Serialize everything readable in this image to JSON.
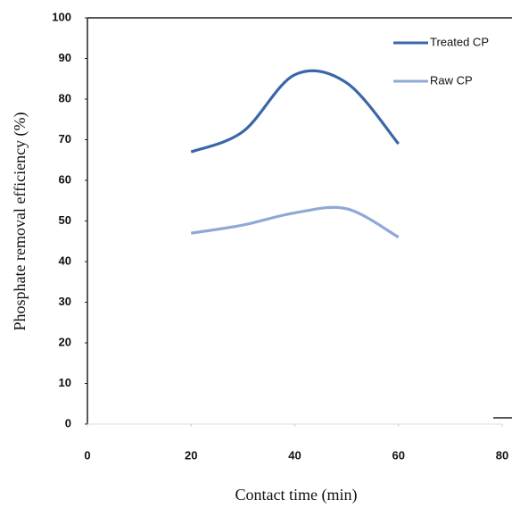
{
  "chart_data": {
    "type": "line",
    "x_label": "Contact time (min)",
    "y_label": "Phosphate removal  efficiency  (%)",
    "x": [
      20,
      30,
      40,
      50,
      60
    ],
    "series": [
      {
        "name": "Treated CP",
        "color": "#3a67a8",
        "values": [
          67,
          72,
          86,
          84,
          69
        ]
      },
      {
        "name": "Raw CP",
        "color": "#8fa9d6",
        "values": [
          47,
          49,
          52,
          53,
          46
        ]
      }
    ],
    "xlim": [
      0,
      80
    ],
    "xticks": [
      0,
      20,
      40,
      60,
      80
    ],
    "ylim": [
      0,
      100
    ],
    "yticks": [
      0,
      10,
      20,
      30,
      40,
      50,
      60,
      70,
      80,
      90,
      100
    ],
    "smooth": true,
    "legend": "top-right"
  }
}
